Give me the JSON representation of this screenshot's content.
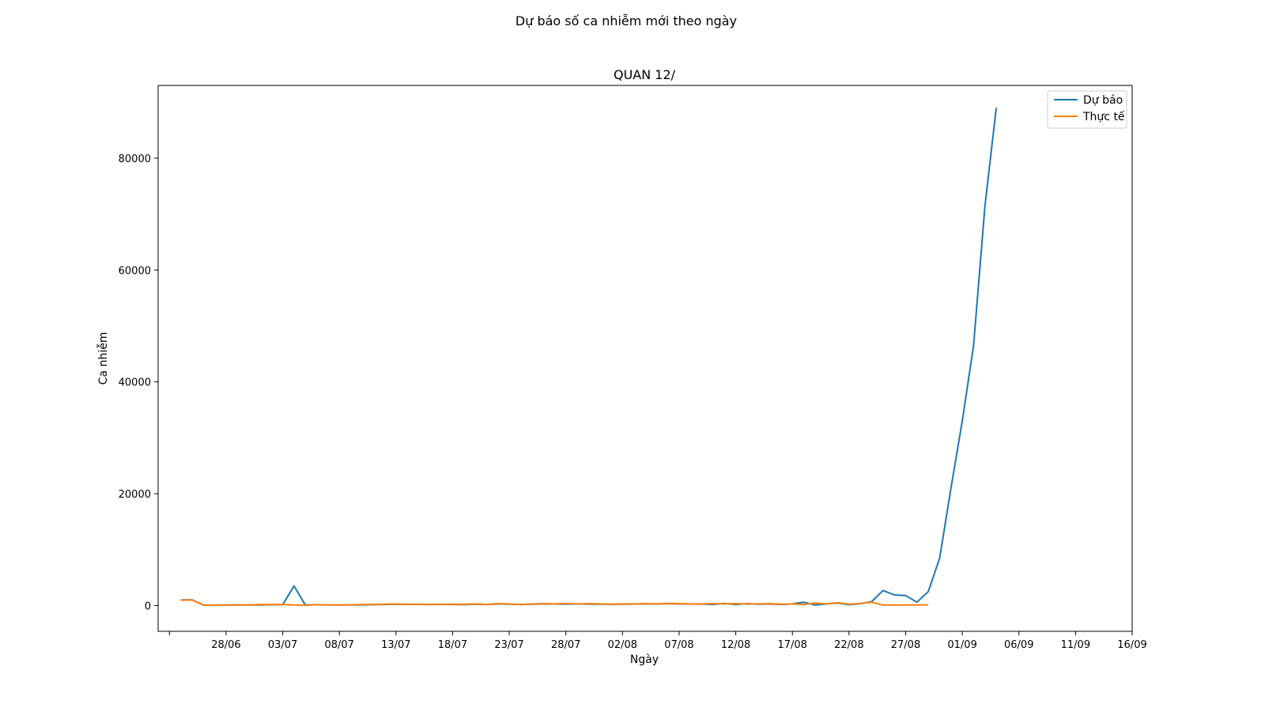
{
  "figure": {
    "suptitle": "Dự báo số ca nhiễm mới theo ngày"
  },
  "chart_data": {
    "type": "line",
    "title": "QUAN 12/",
    "xlabel": "Ngày",
    "ylabel": "Ca nhiễm",
    "x_start": "2021-06-24",
    "xlim": [
      "2021-06-22",
      "2021-09-16"
    ],
    "ylim": [
      -4600,
      93000
    ],
    "x_ticks": [
      "2021-06-23",
      "2021-06-28",
      "2021-07-03",
      "2021-07-08",
      "2021-07-13",
      "2021-07-18",
      "2021-07-23",
      "2021-07-28",
      "2021-08-02",
      "2021-08-07",
      "2021-08-12",
      "2021-08-17",
      "2021-08-22",
      "2021-08-27",
      "2021-09-01",
      "2021-09-06",
      "2021-09-11",
      "2021-09-16"
    ],
    "x_tick_labels": [
      "",
      "28/06",
      "03/07",
      "08/07",
      "13/07",
      "18/07",
      "23/07",
      "28/07",
      "02/08",
      "07/08",
      "12/08",
      "17/08",
      "22/08",
      "27/08",
      "01/09",
      "06/09",
      "11/09",
      "16/09"
    ],
    "y_ticks": [
      0,
      20000,
      40000,
      60000,
      80000
    ],
    "y_tick_labels": [
      "0",
      "20000",
      "40000",
      "60000",
      "80000"
    ],
    "legend_position": "top-right",
    "series": [
      {
        "name": "Dự báo",
        "color": "#1f77b4",
        "values": [
          1000,
          1050,
          100,
          80,
          90,
          120,
          100,
          130,
          150,
          180,
          3500,
          100,
          150,
          120,
          100,
          120,
          130,
          160,
          200,
          250,
          220,
          230,
          200,
          210,
          200,
          180,
          250,
          200,
          300,
          250,
          200,
          250,
          300,
          280,
          260,
          300,
          270,
          250,
          230,
          250,
          280,
          300,
          280,
          350,
          300,
          280,
          260,
          200,
          400,
          200,
          350,
          250,
          300,
          200,
          300,
          600,
          100,
          300,
          450,
          150,
          350,
          700,
          2700,
          1900,
          1800,
          600,
          2500,
          8500,
          21000,
          33000,
          46500,
          71500,
          89000
        ]
      },
      {
        "name": "Thực tế",
        "color": "#ff7f0e",
        "values": [
          950,
          1000,
          80,
          60,
          80,
          100,
          120,
          200,
          200,
          200,
          90,
          60,
          150,
          120,
          130,
          120,
          200,
          200,
          250,
          280,
          230,
          220,
          200,
          230,
          250,
          220,
          300,
          200,
          350,
          280,
          200,
          280,
          350,
          300,
          400,
          280,
          350,
          300,
          250,
          300,
          300,
          350,
          300,
          400,
          350,
          300,
          300,
          350,
          300,
          350,
          280,
          300,
          350,
          250,
          300,
          200,
          450,
          300,
          500,
          250,
          400,
          600,
          100,
          80,
          90,
          100,
          120
        ]
      }
    ]
  }
}
